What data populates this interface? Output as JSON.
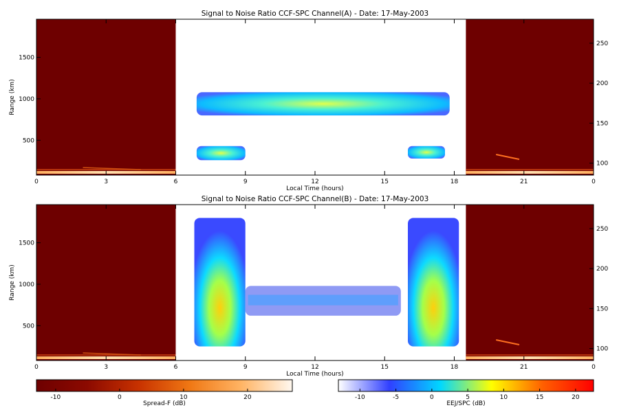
{
  "chart_data": [
    {
      "type": "heatmap",
      "title": "Signal to Noise Ratio CCF-SPC Channel(A) - Date: 17-May-2003",
      "xlabel": "Local Time (hours)",
      "ylabel": "Range (km)",
      "xlim": [
        0,
        24
      ],
      "x_ticks": [
        "0",
        "3",
        "6",
        "9",
        "12",
        "15",
        "18",
        "21",
        "0"
      ],
      "ylim": [
        80,
        1960
      ],
      "y_ticks": [
        500,
        1000,
        1500
      ],
      "y2_ticks": [
        100,
        150,
        200,
        250
      ],
      "y2_label": "",
      "left_spreadf_block_hours": [
        0,
        6
      ],
      "right_spreadf_block_hours": [
        18.5,
        24
      ],
      "echo_regions": [
        {
          "from_hour": 6.9,
          "to_hour": 17.8,
          "range_km_min": 800,
          "range_km_max": 1080,
          "level": "strong"
        },
        {
          "from_hour": 6.9,
          "to_hour": 9.0,
          "range_km_min": 260,
          "range_km_max": 430,
          "level": "strong"
        },
        {
          "from_hour": 16.0,
          "to_hour": 17.6,
          "range_km_min": 280,
          "range_km_max": 430,
          "level": "strong"
        }
      ]
    },
    {
      "type": "heatmap",
      "title": "Signal to Noise Ratio CCF-SPC Channel(B) - Date: 17-May-2003",
      "xlabel": "Local Time (hours)",
      "ylabel": "Range (km)",
      "xlim": [
        0,
        24
      ],
      "x_ticks": [
        "0",
        "3",
        "6",
        "9",
        "12",
        "15",
        "18",
        "21",
        "0"
      ],
      "ylim": [
        80,
        1960
      ],
      "y_ticks": [
        500,
        1000,
        1500
      ],
      "y2_ticks": [
        100,
        150,
        200,
        250
      ],
      "y2_label": "",
      "left_spreadf_block_hours": [
        0,
        6
      ],
      "right_spreadf_block_hours": [
        18.5,
        24
      ],
      "echo_regions": [
        {
          "from_hour": 6.8,
          "to_hour": 9.0,
          "range_km_min": 250,
          "range_km_max": 1800,
          "level": "strong"
        },
        {
          "from_hour": 9.0,
          "to_hour": 15.7,
          "range_km_min": 620,
          "range_km_max": 980,
          "level": "weak"
        },
        {
          "from_hour": 16.0,
          "to_hour": 18.2,
          "range_km_min": 250,
          "range_km_max": 1800,
          "level": "strong"
        }
      ]
    }
  ],
  "colorbars": [
    {
      "label": "Spread-F (dB)",
      "range": [
        -13,
        27
      ],
      "ticks": [
        "-10",
        "0",
        "10",
        "20"
      ],
      "stops": [
        "#6e0000",
        "#8c0a00",
        "#c83200",
        "#f07814",
        "#ffb464",
        "#fff8f0"
      ]
    },
    {
      "label": "EEJ/SPC (dB)",
      "range": [
        -13,
        22.5
      ],
      "ticks": [
        "-10",
        "-5",
        "0",
        "5",
        "10",
        "15",
        "20"
      ],
      "stops": [
        "#ffffff",
        "#3040ff",
        "#00d8ff",
        "#ffff00",
        "#ff6000",
        "#ff0000"
      ]
    }
  ]
}
